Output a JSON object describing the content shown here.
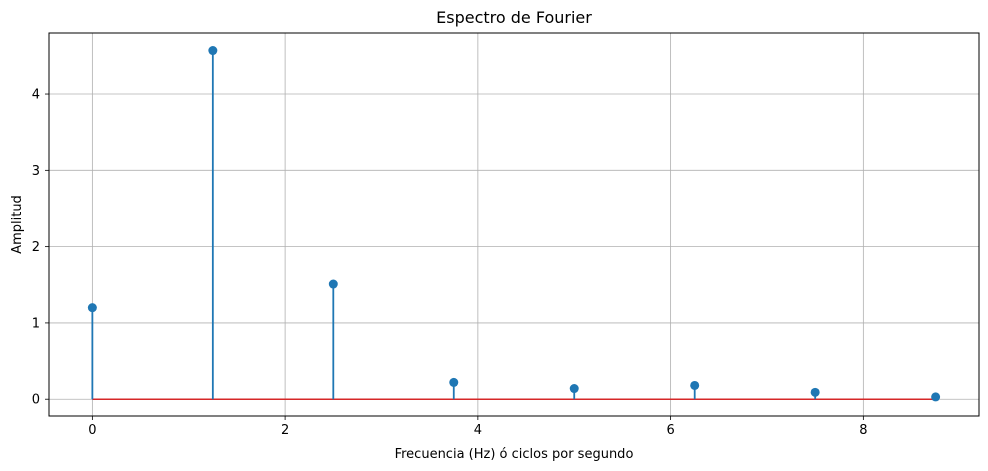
{
  "chart_data": {
    "type": "stem",
    "title": "Espectro de Fourier",
    "xlabel": "Frecuencia (Hz) ó ciclos por segundo",
    "ylabel": "Amplitud",
    "xlim": [
      -0.45,
      9.2
    ],
    "ylim": [
      -0.22,
      4.8
    ],
    "xticks": [
      0,
      2,
      4,
      6,
      8
    ],
    "yticks": [
      0,
      1,
      2,
      3,
      4
    ],
    "grid": true,
    "x": [
      0,
      1.25,
      2.5,
      3.75,
      5.0,
      6.25,
      7.5,
      8.75
    ],
    "y": [
      1.2,
      4.57,
      1.51,
      0.22,
      0.14,
      0.18,
      0.09,
      0.03
    ],
    "colors": {
      "stem": "#1f77b4",
      "marker": "#1f77b4",
      "baseline": "#d62728",
      "grid": "#b0b0b0"
    }
  }
}
